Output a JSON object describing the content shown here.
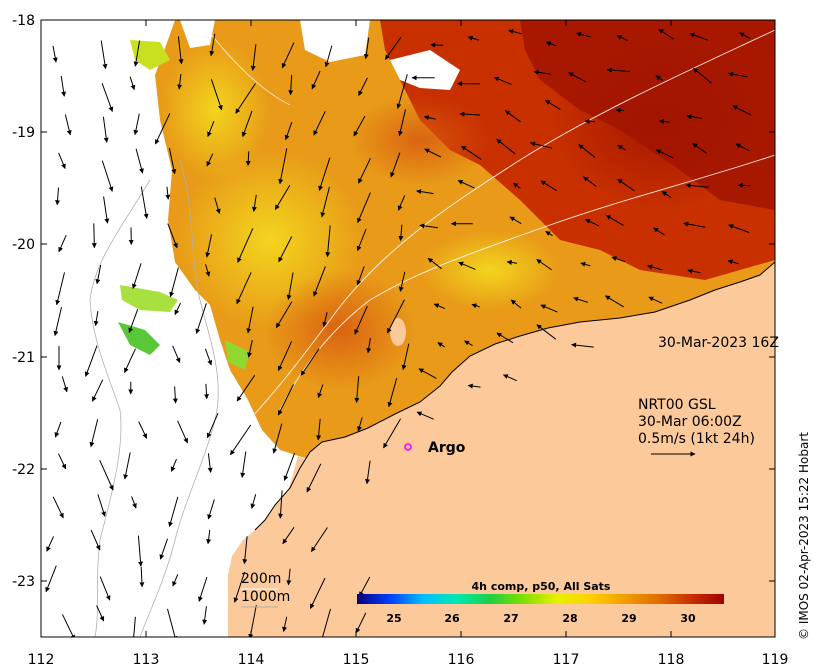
{
  "map": {
    "lon_ticks": [
      "112",
      "113",
      "114",
      "115",
      "116",
      "117",
      "118",
      "119"
    ],
    "lat_ticks": [
      "-18",
      "-19",
      "-20",
      "-21",
      "-22",
      "-23"
    ]
  },
  "annotations": {
    "timestamp": "30-Mar-2023 16Z",
    "argo_label": "Argo",
    "vector_line1": "NRT00 GSL",
    "vector_line2": "30-Mar 06:00Z",
    "vector_line3": "0.5m/s (1kt 24h)",
    "isobath_200": "200m",
    "isobath_1000": "1000m"
  },
  "colorbar": {
    "title": "4h comp, p50, All Sats",
    "ticks": [
      "25",
      "26",
      "27",
      "28",
      "29",
      "30"
    ],
    "stops": [
      "#000080",
      "#0040ff",
      "#00c0ff",
      "#00e8b0",
      "#20d040",
      "#80e000",
      "#e8f000",
      "#ffd000",
      "#f0a000",
      "#e07000",
      "#c83000",
      "#a00000"
    ]
  },
  "colors": {
    "land": "#fcc99a",
    "sst_warm": "#c83000",
    "sst_mid": "#e89a18",
    "sst_cool": "#f2d21e",
    "argo_marker": "#ff00ff"
  },
  "credit": "© IMOS 02-Apr-2023 15:22 Hobart"
}
